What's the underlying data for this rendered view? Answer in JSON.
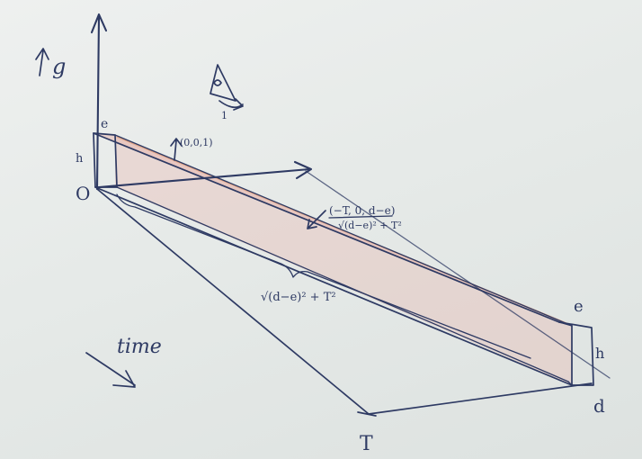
{
  "labels": {
    "g_axis": "g",
    "origin": "O",
    "e_left": "e",
    "h_left": "h",
    "normal_vec": "(0,0,1)",
    "slope_vec_num": "(−T, 0, d−e)",
    "slope_vec_den": "√(d−e)² + T²",
    "length_brace": "√(d−e)² + T²",
    "e_right": "e",
    "h_right": "h",
    "time": "time",
    "T": "T",
    "d": "d",
    "sail_num": "1"
  },
  "colors": {
    "ink": "#2e3a63",
    "paper": "#e9ecea",
    "shade": "#e7b9b0",
    "accent_line": "#e3a88a"
  }
}
